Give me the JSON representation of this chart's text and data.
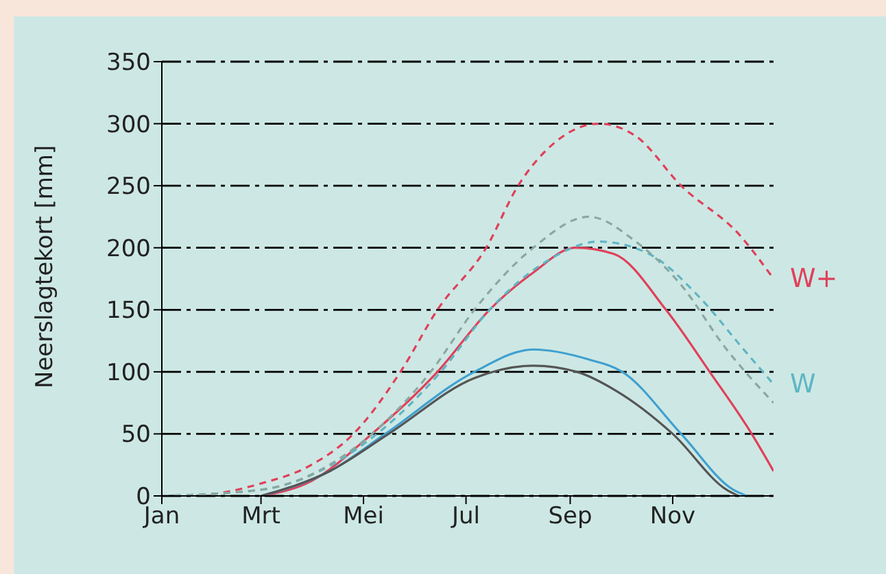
{
  "chart_data": {
    "type": "line",
    "ylabel": "Neerslagtekort [mm]",
    "xlim": [
      "--01-01",
      "--12-31"
    ],
    "xticks": [
      {
        "value": "--01-01",
        "label": "Jan"
      },
      {
        "value": "--03-01",
        "label": "Mrt"
      },
      {
        "value": "--05-01",
        "label": "Mei"
      },
      {
        "value": "--07-01",
        "label": "Jul"
      },
      {
        "value": "--09-01",
        "label": "Sep"
      },
      {
        "value": "--11-01",
        "label": "Nov"
      }
    ],
    "ylim": [
      0,
      350
    ],
    "yticks": [
      0,
      50,
      100,
      150,
      200,
      250,
      300,
      350
    ],
    "grid": "y",
    "legend": false,
    "marker": "none",
    "series": [
      {
        "name": "W+",
        "color": "#e0405a",
        "line_style": "dashed",
        "x": [
          "--01-01",
          "--01-16",
          "--03-01",
          "--03-31",
          "--04-25",
          "--05-23",
          "--06-14",
          "--07-13",
          "--08-01",
          "--08-23",
          "--09-18",
          "--10-10",
          "--11-06",
          "--12-11",
          "--12-31"
        ],
        "values": [
          0,
          0,
          10,
          25,
          50,
          100,
          150,
          200,
          250,
          285,
          300,
          290,
          250,
          210,
          175
        ]
      },
      {
        "color": "#e0405a",
        "line_style": "solid",
        "x": [
          "--03-01",
          "--03-31",
          "--05-06",
          "--06-14",
          "--07-15",
          "--08-10",
          "--09-04",
          "--09-27",
          "--10-28",
          "--11-23",
          "--12-18",
          "--12-31"
        ],
        "values": [
          0,
          12,
          50,
          100,
          150,
          180,
          200,
          195,
          150,
          100,
          50,
          20
        ]
      },
      {
        "name": "W",
        "color": "#5fb5c5",
        "line_style": "dashed",
        "x": [
          "--01-01",
          "--03-01",
          "--05-09",
          "--06-16",
          "--07-15",
          "--08-19",
          "--09-18",
          "--10-18",
          "--11-17",
          "--12-12",
          "--12-31"
        ],
        "values": [
          0,
          5,
          50,
          100,
          150,
          190,
          205,
          195,
          160,
          120,
          90
        ]
      },
      {
        "color": "#8aa8a0",
        "line_style": "dashed",
        "x": [
          "--01-01",
          "--03-01",
          "--05-06",
          "--06-10",
          "--07-06",
          "--08-10",
          "--09-12",
          "--10-10",
          "--11-06",
          "--12-02",
          "--12-31"
        ],
        "values": [
          0,
          5,
          50,
          100,
          150,
          200,
          225,
          205,
          170,
          120,
          75
        ]
      },
      {
        "color": "#3fa0d0",
        "line_style": "solid",
        "x": [
          "--03-01",
          "--04-11",
          "--05-14",
          "--07-06",
          "--08-10",
          "--09-12",
          "--10-02",
          "--11-06",
          "--12-07",
          "--12-15"
        ],
        "values": [
          0,
          20,
          50,
          100,
          118,
          110,
          100,
          50,
          5,
          0
        ]
      },
      {
        "color": "#555555",
        "line_style": "solid",
        "x": [
          "--03-01",
          "--04-11",
          "--05-16",
          "--07-06",
          "--08-10",
          "--09-05",
          "--09-28",
          "--11-01",
          "--12-03",
          "--12-10"
        ],
        "values": [
          0,
          20,
          50,
          95,
          105,
          100,
          85,
          50,
          5,
          0
        ]
      }
    ]
  }
}
